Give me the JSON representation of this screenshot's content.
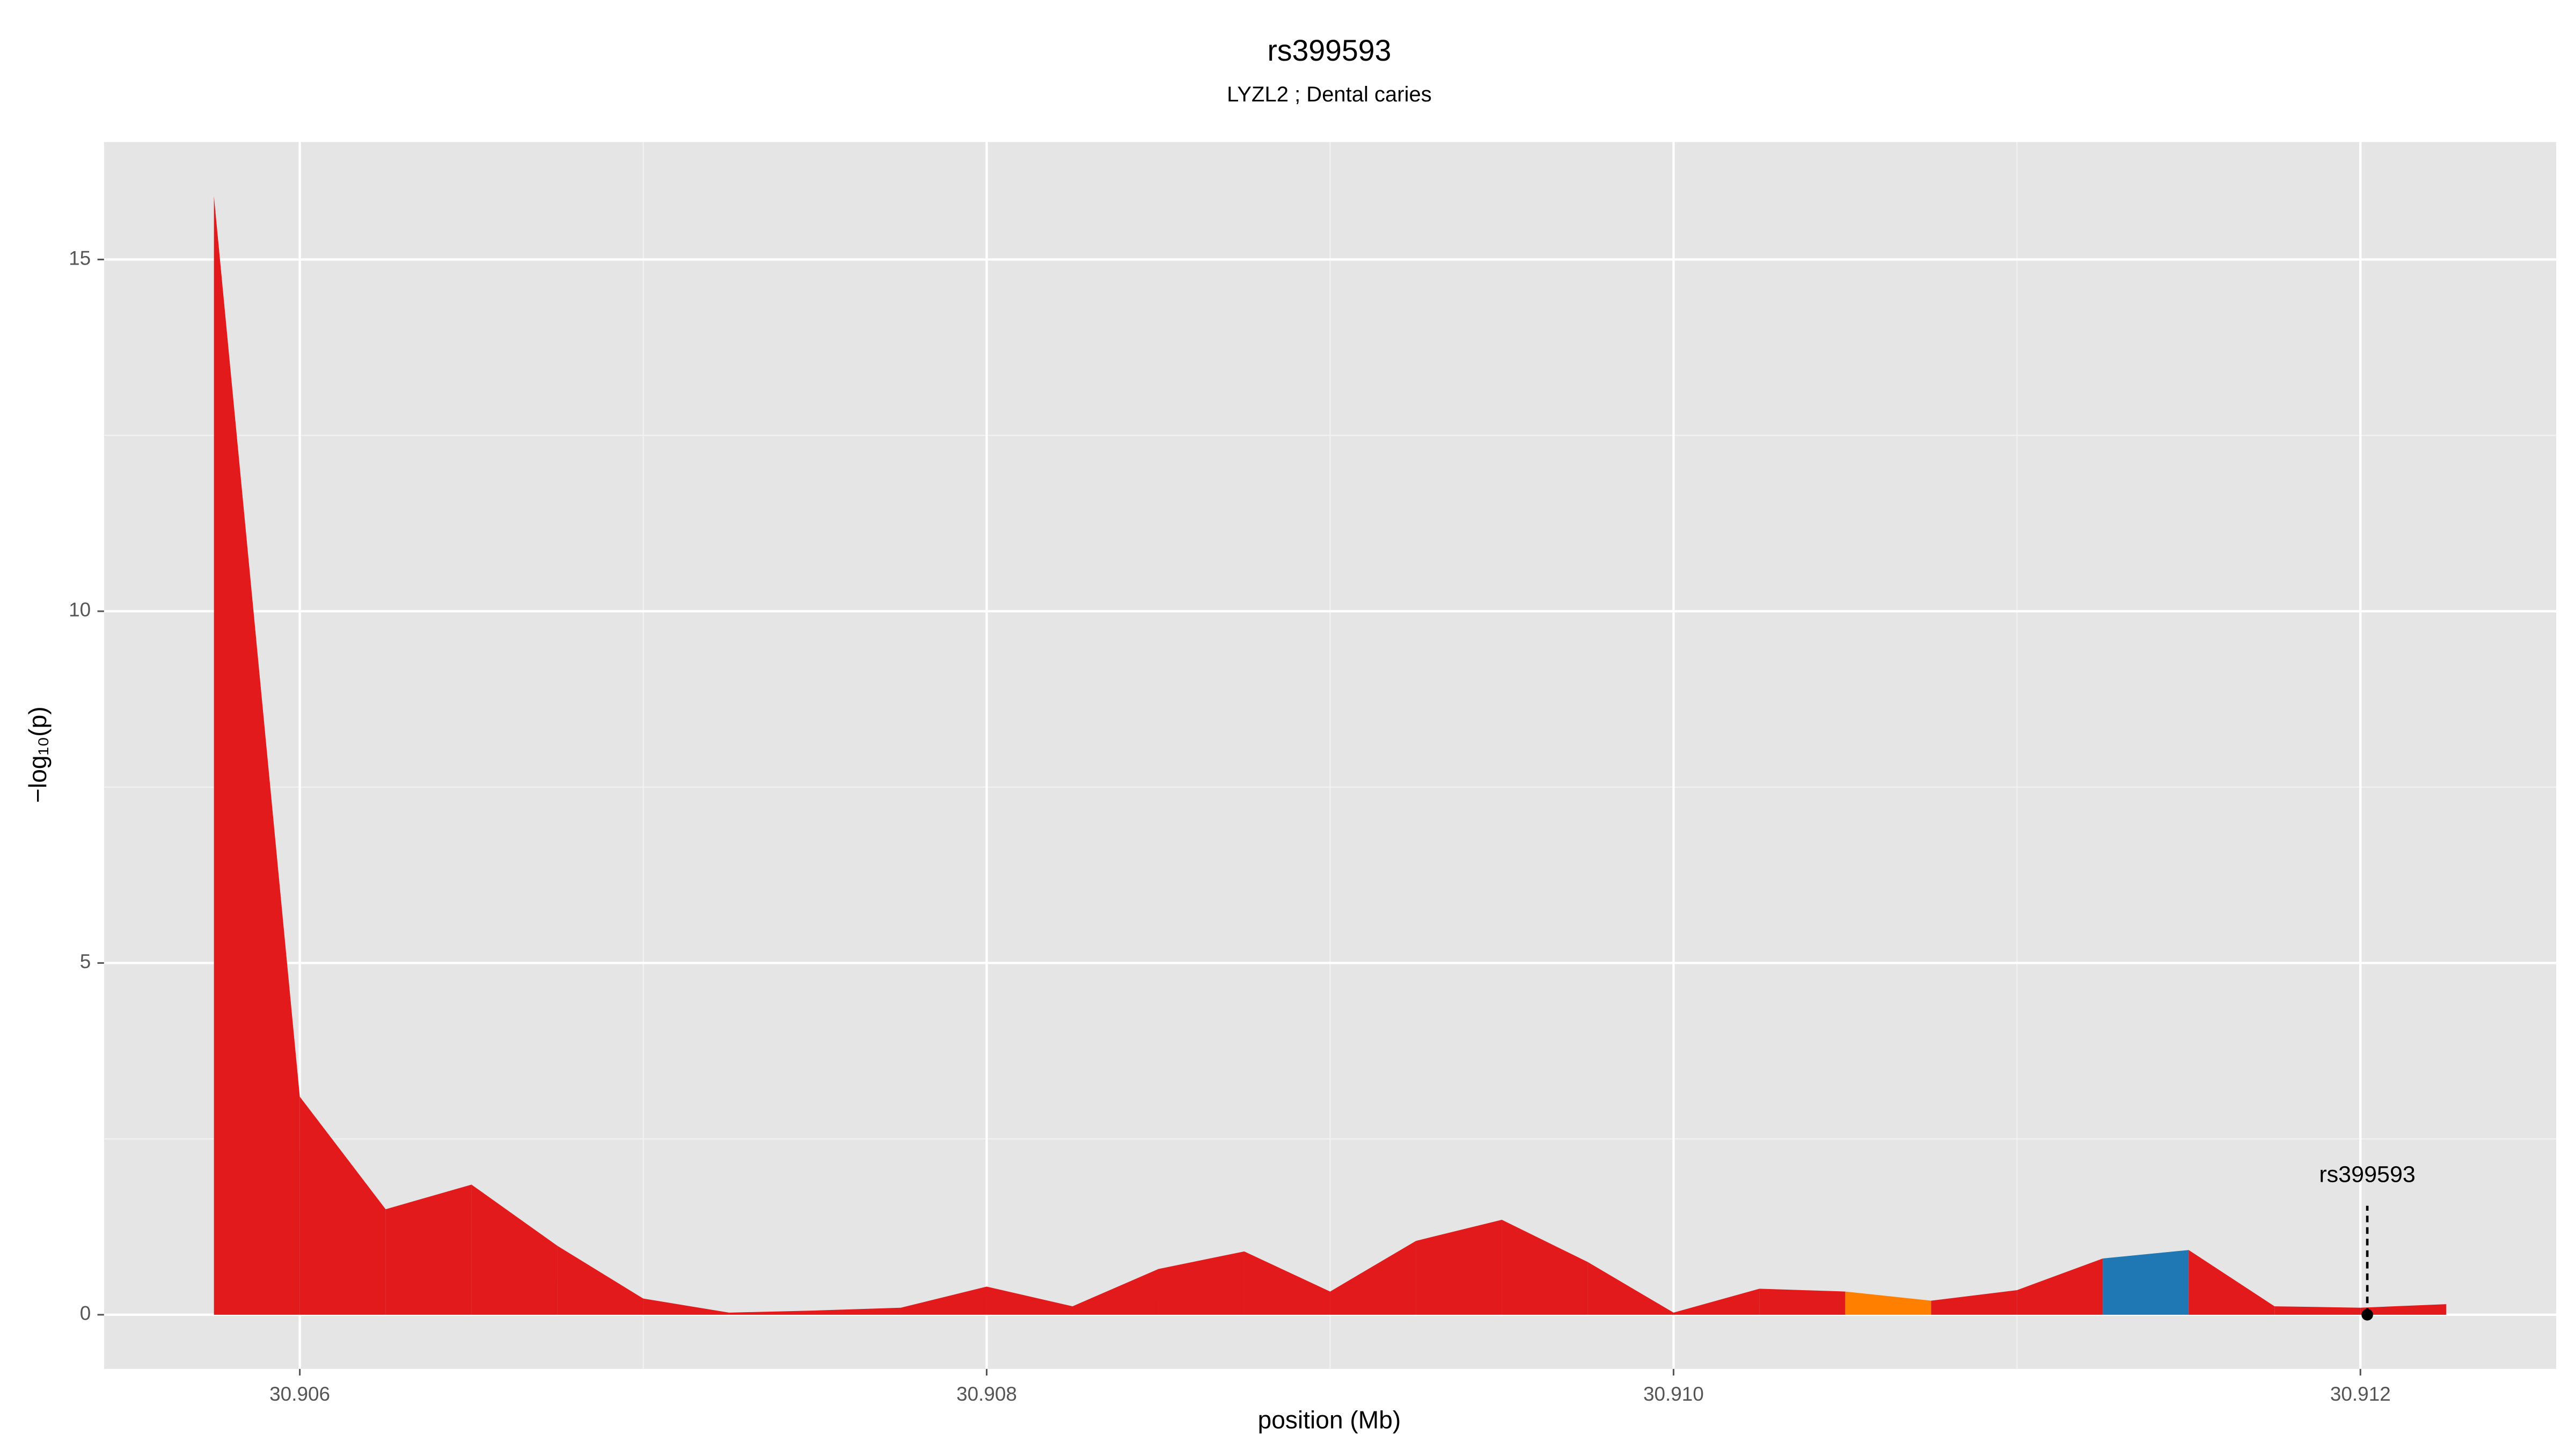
{
  "chart_data": {
    "type": "area",
    "title": "rs399593",
    "subtitle": "LYZL2 ; Dental caries",
    "x_label": "position (Mb)",
    "y_label": "−log₁₀(p)",
    "x": [
      30.90575,
      30.906,
      30.90625,
      30.9065,
      30.90675,
      30.907,
      30.90725,
      30.9075,
      30.90775,
      30.908,
      30.90825,
      30.9085,
      30.90875,
      30.909,
      30.90925,
      30.9095,
      30.90975,
      30.91,
      30.91025,
      30.9105,
      30.91075,
      30.911,
      30.91125,
      30.9115,
      30.91175,
      30.912,
      30.91225
    ],
    "values": [
      15.9,
      3.1,
      1.5,
      1.85,
      0.98,
      0.23,
      0.03,
      0.06,
      0.1,
      0.4,
      0.12,
      0.65,
      0.9,
      0.33,
      1.05,
      1.35,
      0.75,
      0.03,
      0.37,
      0.33,
      0.2,
      0.35,
      0.8,
      0.92,
      0.12,
      0.1,
      0.15
    ],
    "segment_colors": [
      "#e31a1c",
      "#e31a1c",
      "#e31a1c",
      "#e31a1c",
      "#e31a1c",
      "#e31a1c",
      "#e31a1c",
      "#e31a1c",
      "#e31a1c",
      "#e31a1c",
      "#e31a1c",
      "#e31a1c",
      "#e31a1c",
      "#e31a1c",
      "#e31a1c",
      "#e31a1c",
      "#e31a1c",
      "#e31a1c",
      "#e31a1c",
      "#ff7f00",
      "#e31a1c",
      "#e31a1c",
      "#1f78b4",
      "#e31a1c",
      "#e31a1c",
      "#e31a1c"
    ],
    "annotation": {
      "text": "rs399593",
      "x": 30.91202,
      "y": 0
    },
    "xlim": [
      30.90543,
      30.91257
    ],
    "ylim": [
      -0.77,
      16.67
    ],
    "xticks": [
      30.906,
      30.908,
      {
        "value": 30.91,
        "label": "30.910"
      },
      30.912
    ],
    "yticks": [
      0,
      5,
      10,
      15
    ],
    "grid": true,
    "minor_grid": true
  }
}
